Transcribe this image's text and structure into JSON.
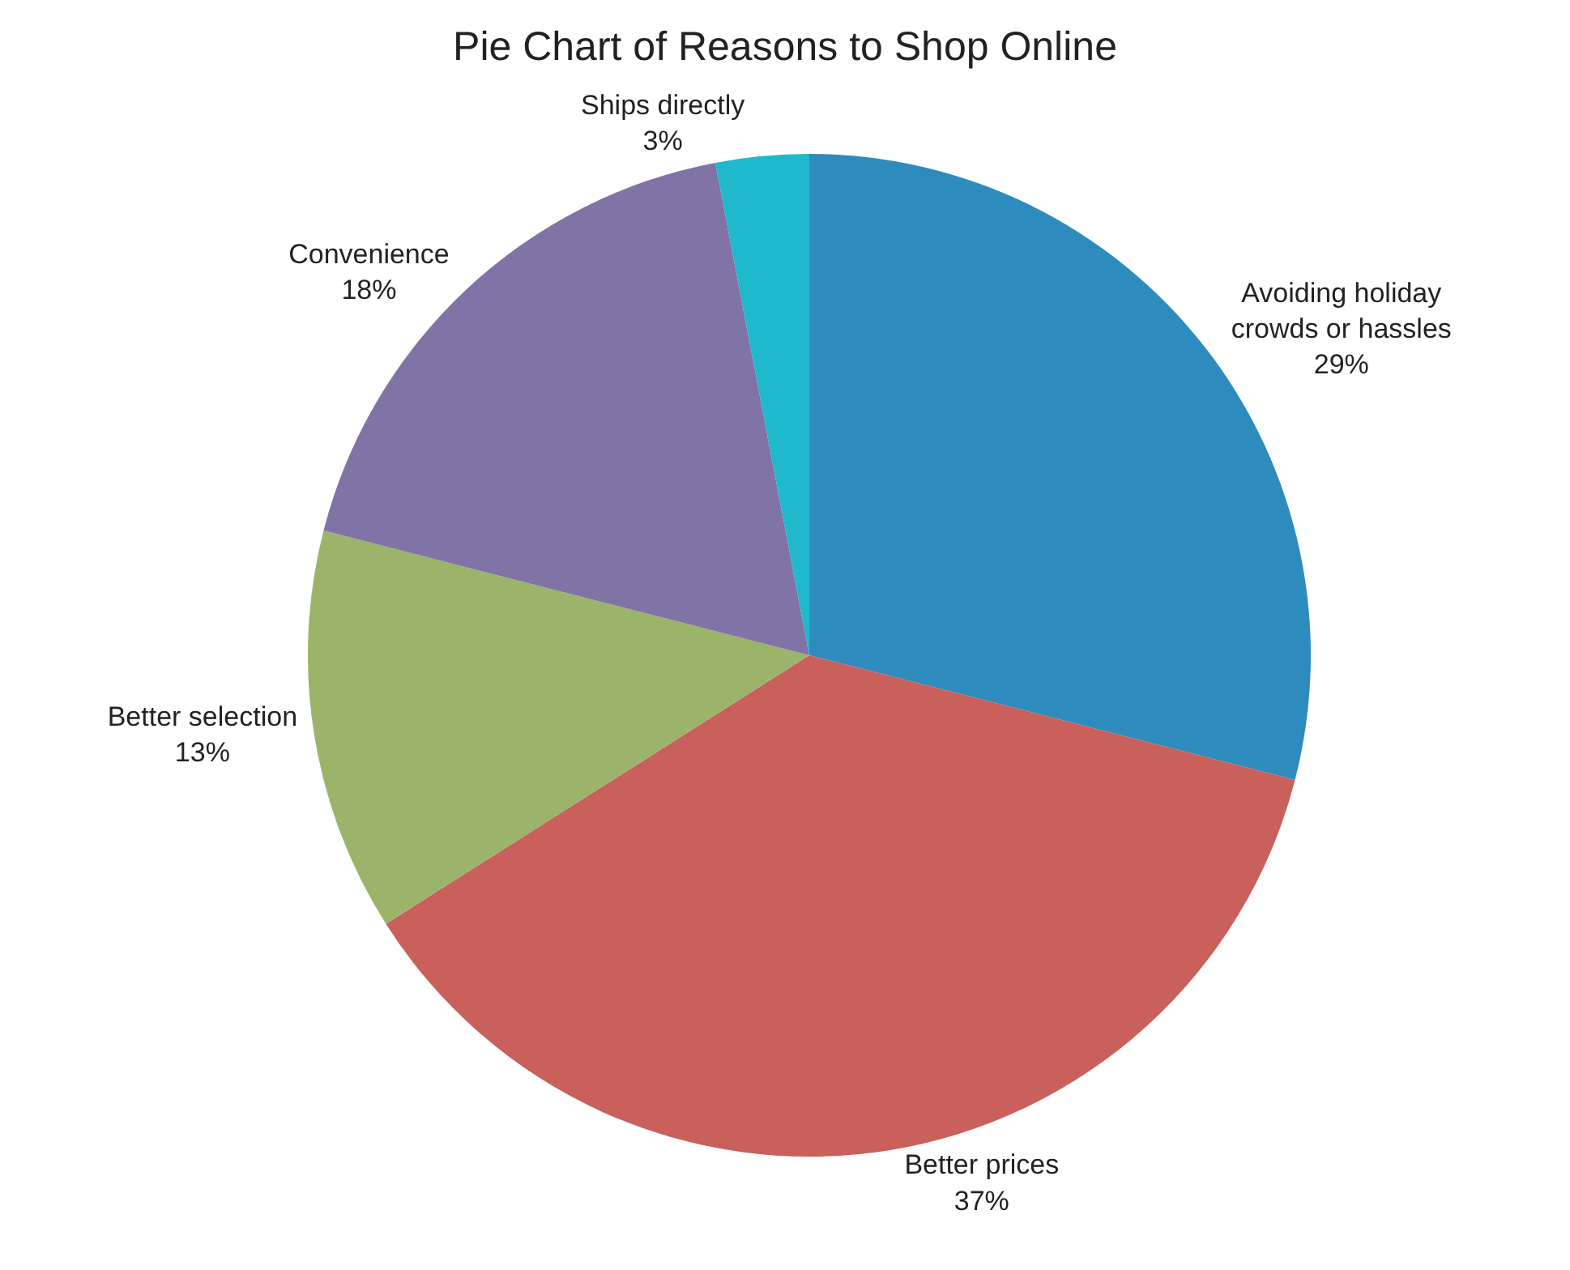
{
  "chart_data": {
    "type": "pie",
    "title": "Pie Chart of Reasons to Shop Online",
    "categories": [
      "Avoiding holiday crowds or hassles",
      "Better prices",
      "Better selection",
      "Convenience",
      "Ships directly"
    ],
    "values": [
      29,
      37,
      13,
      18,
      3
    ],
    "value_labels": [
      "29%",
      "37%",
      "13%",
      "18%",
      "3%"
    ],
    "colors": [
      "#2e8bbd",
      "#c9605c",
      "#9bb46a",
      "#8073a6",
      "#1fb8cc"
    ],
    "legend": false
  }
}
